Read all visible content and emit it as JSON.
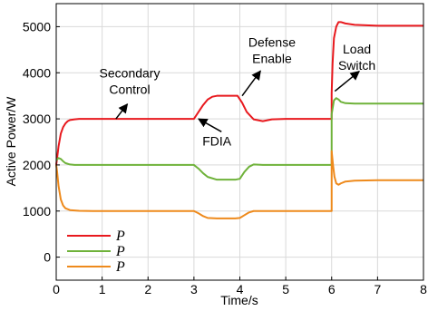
{
  "chart_data": {
    "type": "line",
    "xlabel": "Time/s",
    "ylabel": "Active Power/W",
    "xlim": [
      0,
      8
    ],
    "ylim": [
      -500,
      5500
    ],
    "xticks": [
      "0",
      "1",
      "2",
      "3",
      "4",
      "5",
      "6",
      "7",
      "8"
    ],
    "yticks": [
      "0",
      "1000",
      "2000",
      "3000",
      "4000",
      "5000"
    ],
    "grid": true,
    "legend_position": "bottom-left",
    "series": [
      {
        "name": "P",
        "color": "#e8191e",
        "x": [
          0,
          0.02,
          0.05,
          0.1,
          0.15,
          0.2,
          0.25,
          0.3,
          0.4,
          0.5,
          0.7,
          1.0,
          2.0,
          3.0,
          3.1,
          3.2,
          3.3,
          3.4,
          3.5,
          3.6,
          3.8,
          3.95,
          4.05,
          4.15,
          4.3,
          4.5,
          4.7,
          5.0,
          5.5,
          6.0,
          6.0,
          6.02,
          6.05,
          6.1,
          6.15,
          6.2,
          6.3,
          6.5,
          7.0,
          8.0
        ],
        "y": [
          2000,
          2150,
          2400,
          2680,
          2820,
          2900,
          2950,
          2975,
          2990,
          3000,
          3000,
          3000,
          3000,
          3000,
          3150,
          3300,
          3420,
          3480,
          3500,
          3500,
          3500,
          3500,
          3350,
          3150,
          2990,
          2950,
          2990,
          3000,
          3000,
          3000,
          3550,
          4200,
          4750,
          5000,
          5100,
          5100,
          5070,
          5040,
          5020,
          5020
        ]
      },
      {
        "name": "P",
        "color": "#6fb23a",
        "x": [
          0,
          0.05,
          0.1,
          0.15,
          0.2,
          0.3,
          0.4,
          0.6,
          1.0,
          2.0,
          3.0,
          3.1,
          3.2,
          3.3,
          3.5,
          3.9,
          4.0,
          4.1,
          4.2,
          4.3,
          4.5,
          5.0,
          6.0,
          6.0,
          6.05,
          6.1,
          6.15,
          6.2,
          6.3,
          6.5,
          7.0,
          8.0
        ],
        "y": [
          2100,
          2150,
          2130,
          2080,
          2040,
          2010,
          2000,
          2000,
          2000,
          2000,
          2000,
          1920,
          1820,
          1740,
          1680,
          1680,
          1700,
          1850,
          1960,
          2010,
          2000,
          2000,
          2000,
          3100,
          3400,
          3450,
          3420,
          3370,
          3340,
          3330,
          3330,
          3330
        ]
      },
      {
        "name": "P",
        "color": "#ee8a1c",
        "x": [
          0,
          0.02,
          0.05,
          0.1,
          0.15,
          0.2,
          0.3,
          0.5,
          0.8,
          1.0,
          2.0,
          3.0,
          3.1,
          3.2,
          3.3,
          3.5,
          3.9,
          4.0,
          4.1,
          4.2,
          4.3,
          4.5,
          5.0,
          6.0,
          6.0,
          6.03,
          6.06,
          6.1,
          6.15,
          6.2,
          6.3,
          6.5,
          7.0,
          8.0
        ],
        "y": [
          2000,
          1850,
          1550,
          1250,
          1120,
          1060,
          1020,
          1005,
          1000,
          1000,
          1000,
          1000,
          950,
          890,
          850,
          840,
          840,
          850,
          910,
          970,
          1000,
          1000,
          1000,
          1000,
          2300,
          2000,
          1750,
          1600,
          1570,
          1600,
          1640,
          1660,
          1670,
          1670
        ]
      }
    ],
    "annotations": [
      {
        "id": "secondary",
        "lines": [
          "Secondary",
          "Control"
        ],
        "x": 1.3,
        "y": 3000,
        "text_x": 1.6,
        "text_y": 3900
      },
      {
        "id": "fdia",
        "lines": [
          "FDIA"
        ],
        "x": 3.1,
        "y": 3000,
        "text_x": 3.5,
        "text_y": 2420
      },
      {
        "id": "defense",
        "lines": [
          "Defense",
          "Enable"
        ],
        "x": 4.05,
        "y": 3500,
        "text_x": 4.7,
        "text_y": 4570
      },
      {
        "id": "load",
        "lines": [
          "Load",
          "Switch"
        ],
        "x": 6.07,
        "y": 3600,
        "text_x": 6.55,
        "text_y": 4420
      }
    ]
  }
}
